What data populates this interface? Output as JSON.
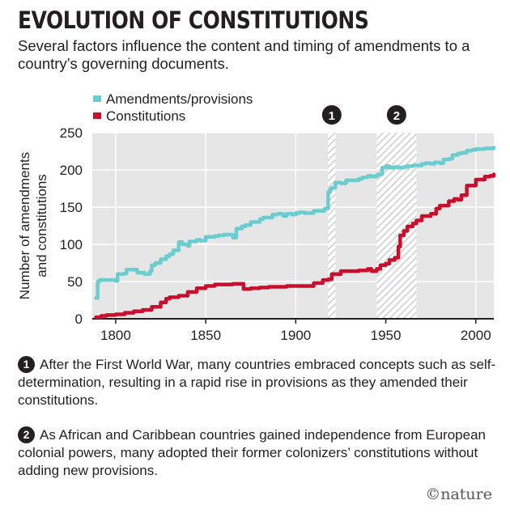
{
  "header": {
    "title": "EVOLUTION OF CONSTITUTIONS",
    "subtitle": "Several factors influence the content and timing of amendments to a country’s governing documents."
  },
  "colors": {
    "amendments": "#6ccdd0",
    "constitutions": "#c8102e",
    "text": "#231f20",
    "grid": "#ffffff",
    "plot_bg": "#e6e6e6",
    "hatch": "#bdbdbd"
  },
  "chart_data": {
    "type": "line",
    "title": "",
    "xlabel": "",
    "ylabel": "Number of amendments and constitutions",
    "xlim": [
      1787,
      2010
    ],
    "ylim": [
      0,
      250
    ],
    "xticks": [
      1800,
      1850,
      1900,
      1950,
      2000
    ],
    "yticks": [
      0,
      50,
      100,
      150,
      200,
      250
    ],
    "grid": true,
    "legend_position": "top-left",
    "shaded_periods": [
      {
        "label": "1",
        "start": 1918,
        "end": 1922
      },
      {
        "label": "2",
        "start": 1945,
        "end": 1967
      }
    ],
    "series": [
      {
        "name": "Amendments/provisions",
        "color": "#6ccdd0",
        "x": [
          1789,
          1790,
          1791,
          1795,
          1800,
          1801,
          1805,
          1806,
          1810,
          1812,
          1815,
          1816,
          1819,
          1820,
          1822,
          1825,
          1828,
          1830,
          1832,
          1835,
          1837,
          1840,
          1841,
          1845,
          1847,
          1850,
          1855,
          1857,
          1860,
          1865,
          1867,
          1870,
          1872,
          1875,
          1880,
          1882,
          1885,
          1887,
          1890,
          1893,
          1895,
          1898,
          1900,
          1902,
          1905,
          1910,
          1912,
          1915,
          1916,
          1918,
          1919,
          1920,
          1922,
          1925,
          1928,
          1930,
          1932,
          1935,
          1937,
          1940,
          1942,
          1945,
          1946,
          1948,
          1950,
          1952,
          1955,
          1957,
          1960,
          1962,
          1965,
          1967,
          1970,
          1972,
          1975,
          1977,
          1980,
          1982,
          1985,
          1987,
          1990,
          1992,
          1995,
          1998,
          2000,
          2005,
          2010
        ],
        "y": [
          28,
          50,
          52,
          52,
          51,
          60,
          61,
          66,
          66,
          62,
          62,
          60,
          64,
          72,
          75,
          80,
          84,
          87,
          92,
          103,
          100,
          98,
          104,
          106,
          105,
          110,
          111,
          112,
          113,
          109,
          121,
          124,
          126,
          130,
          134,
          136,
          136,
          140,
          141,
          138,
          141,
          140,
          142,
          143,
          142,
          145,
          145,
          145,
          148,
          170,
          174,
          176,
          183,
          182,
          186,
          186,
          186,
          188,
          190,
          192,
          191,
          193,
          194,
          203,
          205,
          203,
          204,
          203,
          204,
          205,
          206,
          206,
          208,
          209,
          208,
          210,
          209,
          214,
          215,
          220,
          222,
          223,
          226,
          227,
          228,
          229,
          230
        ]
      },
      {
        "name": "Constitutions",
        "color": "#c8102e",
        "x": [
          1789,
          1792,
          1795,
          1800,
          1805,
          1810,
          1815,
          1820,
          1825,
          1828,
          1830,
          1835,
          1840,
          1845,
          1850,
          1855,
          1860,
          1865,
          1870,
          1871,
          1875,
          1880,
          1885,
          1890,
          1895,
          1900,
          1905,
          1910,
          1915,
          1918,
          1920,
          1925,
          1930,
          1935,
          1940,
          1942,
          1945,
          1947,
          1950,
          1952,
          1955,
          1957,
          1958,
          1960,
          1962,
          1965,
          1967,
          1970,
          1975,
          1978,
          1980,
          1985,
          1988,
          1990,
          1992,
          1995,
          2000,
          2005,
          2008,
          2010
        ],
        "y": [
          2,
          4,
          5,
          6,
          8,
          10,
          12,
          16,
          22,
          27,
          29,
          31,
          36,
          41,
          44,
          46,
          46,
          47,
          47,
          40,
          41,
          42,
          43,
          43,
          44,
          44,
          44,
          48,
          52,
          53,
          60,
          64,
          64,
          65,
          67,
          64,
          67,
          72,
          74,
          79,
          82,
          97,
          112,
          118,
          124,
          128,
          132,
          138,
          141,
          148,
          152,
          158,
          161,
          160,
          166,
          179,
          187,
          191,
          192,
          194
        ]
      }
    ]
  },
  "notes": [
    {
      "num": "1",
      "text": "After the First World War, many countries embraced concepts such as self-determination, resulting in a rapid rise in provisions as they amended their constitutions."
    },
    {
      "num": "2",
      "text": "As African and Caribbean countries gained independence from European colonial powers, many adopted their former colonizers’ constitutions without adding new provisions."
    }
  ],
  "footer": {
    "logo": "©nature"
  }
}
